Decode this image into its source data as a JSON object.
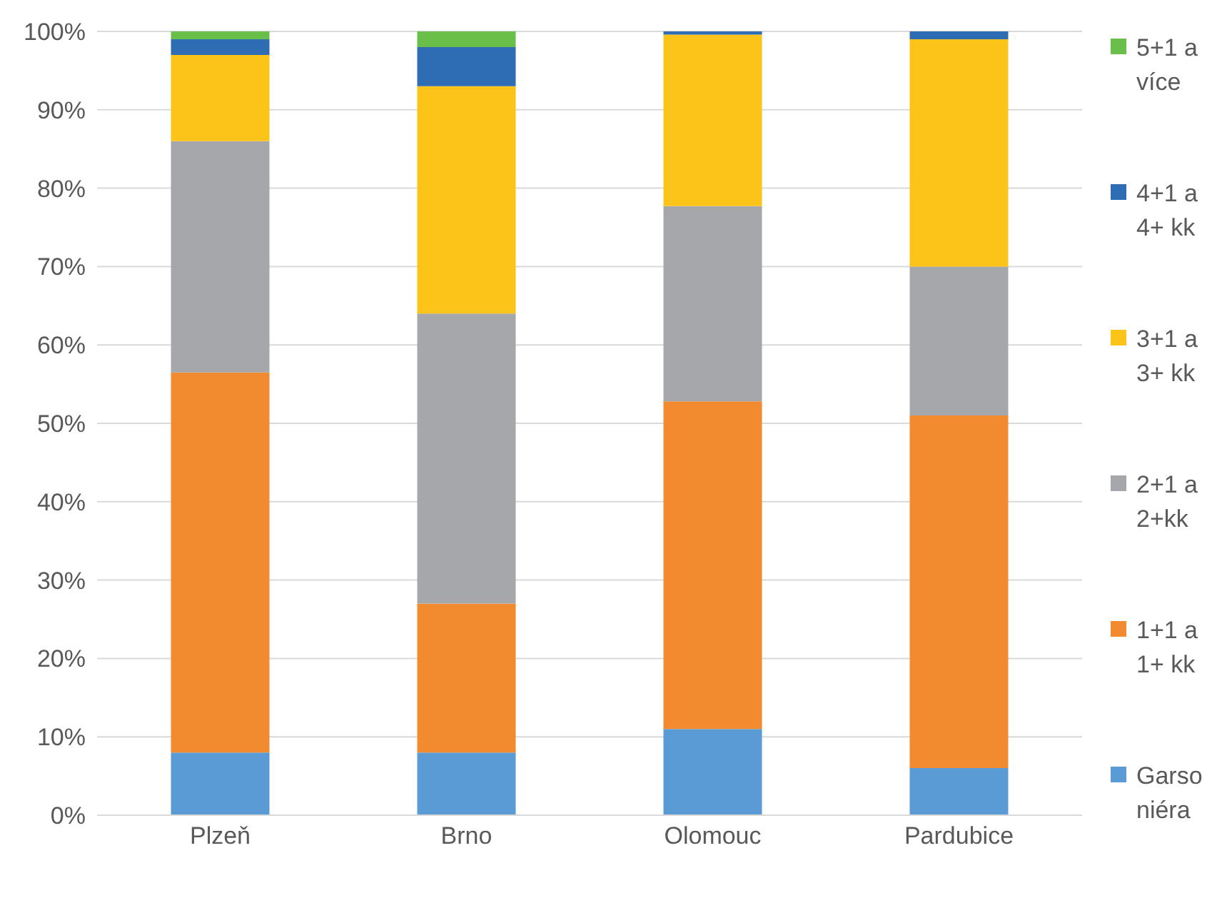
{
  "chart_data": {
    "type": "bar",
    "stacked": true,
    "categories": [
      "Plzeň",
      "Brno",
      "Olomouc",
      "Pardubice"
    ],
    "series": [
      {
        "name": "Garsoniéra",
        "color": "#5b9bd5",
        "values": [
          8,
          8,
          11,
          6
        ]
      },
      {
        "name": "1+1 a 1+ kk",
        "color": "#f28a30",
        "values": [
          48.5,
          19,
          41.8,
          45
        ]
      },
      {
        "name": "2+1 a 2+kk",
        "color": "#a5a7aa",
        "values": [
          29.5,
          37,
          24.9,
          19
        ]
      },
      {
        "name": "3+1 a 3+ kk",
        "color": "#fcc419",
        "values": [
          11,
          29,
          21.9,
          29
        ]
      },
      {
        "name": "4+1 a 4+ kk",
        "color": "#2e6db4",
        "values": [
          2,
          5,
          0.4,
          1
        ]
      },
      {
        "name": "5+1 a více",
        "color": "#6abf4b",
        "values": [
          1,
          2,
          0,
          0
        ]
      }
    ],
    "ylim": [
      0,
      100
    ],
    "yticks": [
      {
        "value": 0,
        "label": "0%"
      },
      {
        "value": 10,
        "label": "10%"
      },
      {
        "value": 20,
        "label": "20%"
      },
      {
        "value": 30,
        "label": "30%"
      },
      {
        "value": 40,
        "label": "40%"
      },
      {
        "value": 50,
        "label": "50%"
      },
      {
        "value": 60,
        "label": "60%"
      },
      {
        "value": 70,
        "label": "70%"
      },
      {
        "value": 80,
        "label": "80%"
      },
      {
        "value": 90,
        "label": "90%"
      },
      {
        "value": 100,
        "label": "100%"
      }
    ],
    "grid": "y",
    "legend": "right"
  }
}
